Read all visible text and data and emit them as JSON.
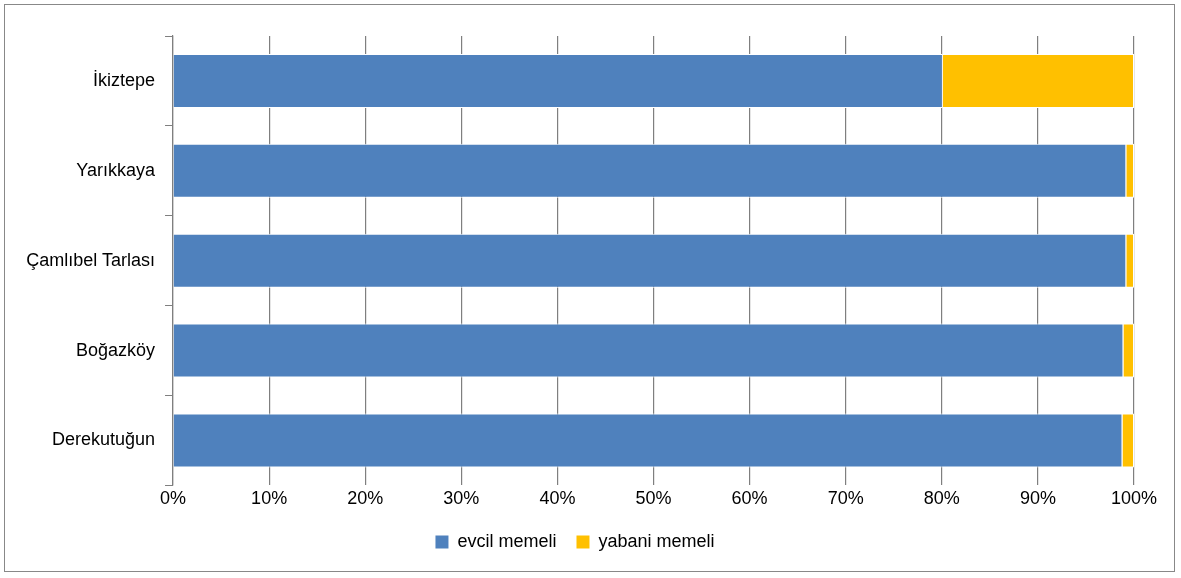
{
  "chart_data": {
    "type": "bar",
    "orientation": "horizontal",
    "stacked": true,
    "categories": [
      "İkiztepe",
      "Yarıkkaya",
      "Çamlıbel Tarlası",
      "Boğazköy",
      "Derekutuğun"
    ],
    "series": [
      {
        "name": "evcil memeli",
        "color": "#4f81bd",
        "values": [
          80.1,
          99.2,
          99.2,
          98.9,
          98.8
        ]
      },
      {
        "name": "yabani memeli",
        "color": "#ffc000",
        "values": [
          19.9,
          0.8,
          0.8,
          1.1,
          1.2
        ]
      }
    ],
    "xlim": [
      0,
      100
    ],
    "xticks": [
      {
        "value": 0,
        "label": "0%"
      },
      {
        "value": 10,
        "label": "10%"
      },
      {
        "value": 20,
        "label": "20%"
      },
      {
        "value": 30,
        "label": "30%"
      },
      {
        "value": 40,
        "label": "40%"
      },
      {
        "value": 50,
        "label": "50%"
      },
      {
        "value": 60,
        "label": "60%"
      },
      {
        "value": 70,
        "label": "70%"
      },
      {
        "value": 80,
        "label": "80%"
      },
      {
        "value": 90,
        "label": "90%"
      },
      {
        "value": 100,
        "label": "100%"
      }
    ],
    "grid": "x",
    "legend": "bottom"
  }
}
